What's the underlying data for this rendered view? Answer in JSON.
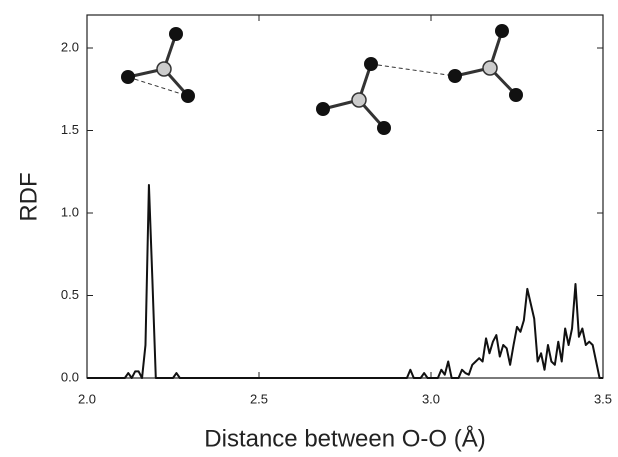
{
  "chart_data": {
    "type": "line",
    "x_label": "Distance between O-O  (Å)",
    "y_label": "RDF",
    "xlim": [
      2.0,
      3.5
    ],
    "ylim": [
      0,
      2.2
    ],
    "xticks": [
      {
        "value": 2,
        "label": "2.0"
      },
      {
        "value": 2.5,
        "label": "2.5"
      },
      {
        "value": 3,
        "label": "3.0"
      },
      {
        "value": 3.5,
        "label": "3.5"
      }
    ],
    "yticks": [
      {
        "value": 0,
        "label": "0.0"
      },
      {
        "value": 0.5,
        "label": "0.5"
      },
      {
        "value": 1,
        "label": "1.0"
      },
      {
        "value": 1.5,
        "label": "1.5"
      },
      {
        "value": 2,
        "label": "2.0"
      }
    ],
    "color": "#111111",
    "x": [
      2.0,
      2.11,
      2.12,
      2.13,
      2.14,
      2.15,
      2.16,
      2.17,
      2.18,
      2.19,
      2.2,
      2.25,
      2.26,
      2.27,
      2.93,
      2.94,
      2.95,
      2.97,
      2.98,
      2.99,
      3.02,
      3.03,
      3.04,
      3.05,
      3.06,
      3.08,
      3.09,
      3.1,
      3.11,
      3.12,
      3.13,
      3.14,
      3.15,
      3.16,
      3.17,
      3.18,
      3.19,
      3.2,
      3.21,
      3.22,
      3.23,
      3.24,
      3.25,
      3.26,
      3.27,
      3.28,
      3.29,
      3.3,
      3.31,
      3.32,
      3.33,
      3.34,
      3.35,
      3.36,
      3.37,
      3.38,
      3.39,
      3.4,
      3.41,
      3.42,
      3.43,
      3.44,
      3.45,
      3.46,
      3.47,
      3.48,
      3.49,
      3.5
    ],
    "values": [
      0,
      0,
      0.03,
      0,
      0.04,
      0.04,
      0,
      0.2,
      1.17,
      0.6,
      0,
      0,
      0.03,
      0,
      0,
      0.05,
      0,
      0,
      0.03,
      0,
      0,
      0.05,
      0.02,
      0.1,
      0,
      0,
      0.05,
      0.03,
      0.02,
      0.08,
      0.1,
      0.12,
      0.1,
      0.24,
      0.15,
      0.22,
      0.26,
      0.13,
      0.2,
      0.18,
      0.08,
      0.2,
      0.31,
      0.28,
      0.35,
      0.54,
      0.45,
      0.36,
      0.1,
      0.15,
      0.05,
      0.2,
      0.1,
      0.08,
      0.22,
      0.1,
      0.3,
      0.2,
      0.3,
      0.57,
      0.25,
      0.3,
      0.2,
      0.22,
      0.2,
      0.1,
      0,
      0
    ]
  }
}
